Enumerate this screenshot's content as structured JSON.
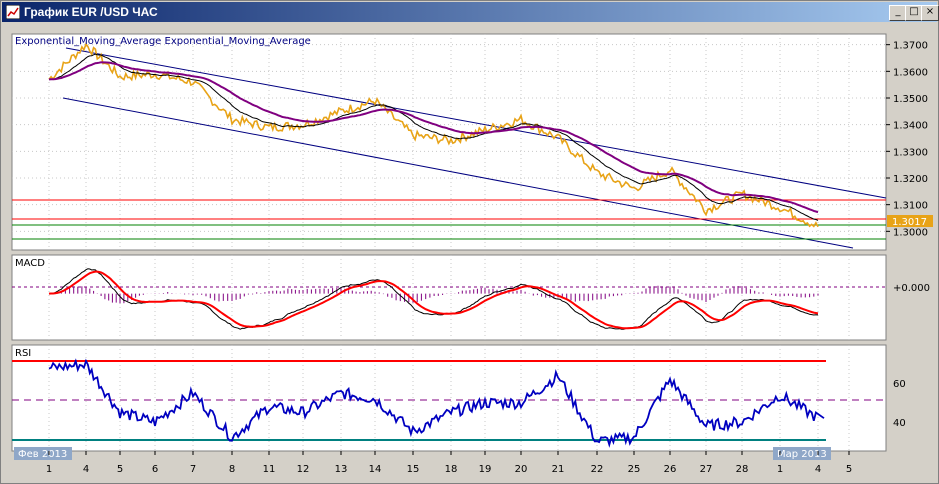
{
  "window": {
    "title": "График EUR /USD  ЧАС",
    "buttons": {
      "minimize": "_",
      "maximize": "□",
      "close": "×"
    }
  },
  "main_panel": {
    "indicator_label": "Exponential_Moving_Average Exponential_Moving_Average",
    "price_ticks": [
      "1.3700",
      "1.3600",
      "1.3500",
      "1.3400",
      "1.3300",
      "1.3200",
      "1.3100",
      "1.3000"
    ],
    "current_price": "1.3017"
  },
  "macd_panel": {
    "label": "MACD",
    "zero_tick": "+0.000"
  },
  "rsi_panel": {
    "label": "RSI",
    "ticks": [
      "60",
      "40"
    ]
  },
  "time_axis": {
    "day_labels": [
      "1",
      "4",
      "5",
      "6",
      "7",
      "8",
      "11",
      "12",
      "13",
      "14",
      "15",
      "18",
      "19",
      "20",
      "21",
      "22",
      "25",
      "26",
      "27",
      "28",
      "1",
      "4",
      "5"
    ],
    "left_month_label": "Фев 2013",
    "right_month_label": "Мар 2013"
  },
  "colors": {
    "price": "#e8a317",
    "ema_slow": "#800080",
    "ema_fast": "#000000",
    "channel": "#000080",
    "resistance": "#ff0000",
    "support": "#008000",
    "macd_hist": "#800080",
    "macd_signal": "#ff0000",
    "rsi_line": "#0000c0",
    "rsi_low": "#008080",
    "rsi_high": "#ff0000",
    "rsi_mid": "#800080"
  },
  "chart_data": [
    {
      "type": "line",
      "title": "EUR /USD ЧАС",
      "x": [
        "1",
        "4",
        "5",
        "6",
        "7",
        "8",
        "11",
        "12",
        "13",
        "14",
        "15",
        "18",
        "19",
        "20",
        "21",
        "22",
        "25",
        "26",
        "27",
        "28",
        "1",
        "4"
      ],
      "series": [
        {
          "values": [
            1.357,
            1.37,
            1.358,
            1.359,
            1.356,
            1.342,
            1.339,
            1.34,
            1.345,
            1.349,
            1.336,
            1.334,
            1.338,
            1.342,
            1.335,
            1.322,
            1.316,
            1.323,
            1.308,
            1.314,
            1.309,
            1.3017
          ]
        }
      ],
      "ylim": [
        1.293,
        1.374
      ],
      "horizontal_levels": [
        1.311,
        1.304,
        1.299
      ]
    },
    {
      "type": "line",
      "title": "MACD",
      "x": [
        "1",
        "4",
        "5",
        "6",
        "7",
        "8",
        "11",
        "12",
        "13",
        "14",
        "15",
        "18",
        "19",
        "20",
        "21",
        "22",
        "25",
        "26",
        "27",
        "28",
        "1",
        "4"
      ],
      "ylim": [
        -0.006,
        0.005
      ],
      "zero_level": 0.0
    },
    {
      "type": "line",
      "title": "RSI",
      "x": [
        "1",
        "4",
        "5",
        "6",
        "7",
        "8",
        "11",
        "12",
        "13",
        "14",
        "15",
        "18",
        "19",
        "20",
        "21",
        "22",
        "25",
        "26",
        "27",
        "28",
        "1",
        "4"
      ],
      "series": [
        {
          "values": [
            68,
            70,
            45,
            40,
            55,
            32,
            48,
            45,
            55,
            52,
            35,
            45,
            50,
            50,
            64,
            30,
            32,
            62,
            38,
            40,
            54,
            42
          ]
        }
      ],
      "ylim": [
        25,
        80
      ],
      "horizontal_levels": [
        70,
        50,
        30
      ]
    }
  ]
}
